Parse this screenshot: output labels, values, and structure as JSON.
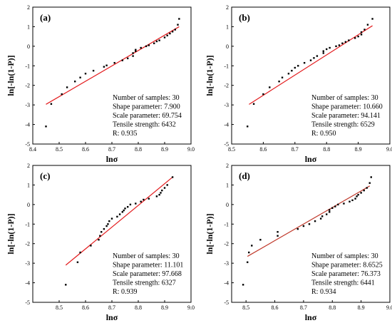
{
  "chart_data": [
    {
      "type": "scatter",
      "panel_label": "(a)",
      "xlabel": "lnσ",
      "ylabel": "ln[-ln(1-P)]",
      "xlim": [
        8.4,
        9.0
      ],
      "ylim": [
        -5,
        2
      ],
      "xticks": [
        "8.4",
        "8.5",
        "8.6",
        "8.7",
        "8.8",
        "8.9",
        "9.0"
      ],
      "yticks": [
        "-5",
        "-4",
        "-3",
        "-2",
        "-1",
        "0",
        "1",
        "2"
      ],
      "fit_line": {
        "x": [
          8.45,
          8.955
        ],
        "y": [
          -2.97,
          1.0
        ],
        "color": "#e31a1c"
      },
      "info": [
        "Number of samples: 30",
        "Shape parameter: 7.900",
        "Scale parameter: 69.754",
        "Tensile strength: 6432",
        "R: 0.935"
      ],
      "points": [
        [
          8.45,
          -4.1
        ],
        [
          8.47,
          -2.95
        ],
        [
          8.51,
          -2.45
        ],
        [
          8.53,
          -2.1
        ],
        [
          8.56,
          -1.8
        ],
        [
          8.58,
          -1.6
        ],
        [
          8.6,
          -1.4
        ],
        [
          8.63,
          -1.25
        ],
        [
          8.67,
          -1.05
        ],
        [
          8.68,
          -0.98
        ],
        [
          8.71,
          -0.85
        ],
        [
          8.74,
          -0.72
        ],
        [
          8.76,
          -0.62
        ],
        [
          8.78,
          -0.5
        ],
        [
          8.78,
          -0.35
        ],
        [
          8.79,
          -0.25
        ],
        [
          8.79,
          -0.18
        ],
        [
          8.81,
          -0.08
        ],
        [
          8.83,
          0.0
        ],
        [
          8.84,
          0.05
        ],
        [
          8.86,
          0.15
        ],
        [
          8.87,
          0.25
        ],
        [
          8.88,
          0.3
        ],
        [
          8.9,
          0.45
        ],
        [
          8.91,
          0.55
        ],
        [
          8.92,
          0.65
        ],
        [
          8.93,
          0.75
        ],
        [
          8.94,
          0.85
        ],
        [
          8.95,
          1.1
        ],
        [
          8.955,
          1.4
        ]
      ]
    },
    {
      "type": "scatter",
      "panel_label": "(b)",
      "xlabel": "lnσ",
      "ylabel": "ln[-ln(1-P)]",
      "xlim": [
        8.5,
        9.0
      ],
      "ylim": [
        -5,
        2
      ],
      "xticks": [
        "8.5",
        "8.6",
        "8.7",
        "8.8",
        "8.9",
        "9.0"
      ],
      "yticks": [
        "-5",
        "-4",
        "-3",
        "-2",
        "-1",
        "0",
        "1",
        "2"
      ],
      "fit_line": {
        "x": [
          8.555,
          8.945
        ],
        "y": [
          -2.97,
          1.05
        ],
        "color": "#e31a1c"
      },
      "info": [
        "Number of samples: 30",
        "Shape parameter: 10.660",
        "Scale parameter: 94.141",
        "Tensile strength: 6529",
        "R: 0.950"
      ],
      "points": [
        [
          8.55,
          -4.1
        ],
        [
          8.57,
          -2.95
        ],
        [
          8.6,
          -2.45
        ],
        [
          8.62,
          -2.1
        ],
        [
          8.65,
          -1.8
        ],
        [
          8.66,
          -1.6
        ],
        [
          8.68,
          -1.4
        ],
        [
          8.69,
          -1.25
        ],
        [
          8.7,
          -1.1
        ],
        [
          8.71,
          -1.0
        ],
        [
          8.73,
          -0.85
        ],
        [
          8.75,
          -0.72
        ],
        [
          8.76,
          -0.6
        ],
        [
          8.77,
          -0.5
        ],
        [
          8.79,
          -0.35
        ],
        [
          8.79,
          -0.25
        ],
        [
          8.8,
          -0.15
        ],
        [
          8.81,
          -0.08
        ],
        [
          8.83,
          0.0
        ],
        [
          8.84,
          0.05
        ],
        [
          8.85,
          0.15
        ],
        [
          8.86,
          0.22
        ],
        [
          8.87,
          0.3
        ],
        [
          8.89,
          0.42
        ],
        [
          8.9,
          0.5
        ],
        [
          8.91,
          0.6
        ],
        [
          8.91,
          0.72
        ],
        [
          8.92,
          0.85
        ],
        [
          8.93,
          1.1
        ],
        [
          8.945,
          1.4
        ]
      ]
    },
    {
      "type": "scatter",
      "panel_label": "(c)",
      "xlabel": "lnσ",
      "ylabel": "ln[-ln(1-P)]",
      "xlim": [
        8.4,
        9.0
      ],
      "ylim": [
        -5,
        2
      ],
      "xticks": [
        "8.5",
        "8.6",
        "8.7",
        "8.8",
        "8.9",
        "9.0"
      ],
      "yticks": [
        "-5",
        "-4",
        "-3",
        "-2",
        "-1",
        "0",
        "1",
        "2"
      ],
      "fit_line": {
        "x": [
          8.525,
          8.93
        ],
        "y": [
          -3.1,
          1.4
        ],
        "color": "#e31a1c"
      },
      "info": [
        "Number of samples: 30",
        "Shape parameter: 11.101",
        "Scale parameter: 97.668",
        "Tensile strength: 6327",
        "R: 0.939"
      ],
      "points": [
        [
          8.525,
          -4.1
        ],
        [
          8.57,
          -2.95
        ],
        [
          8.58,
          -2.45
        ],
        [
          8.62,
          -2.1
        ],
        [
          8.65,
          -1.8
        ],
        [
          8.655,
          -1.6
        ],
        [
          8.66,
          -1.4
        ],
        [
          8.67,
          -1.25
        ],
        [
          8.68,
          -1.1
        ],
        [
          8.685,
          -1.0
        ],
        [
          8.69,
          -0.85
        ],
        [
          8.7,
          -0.72
        ],
        [
          8.72,
          -0.62
        ],
        [
          8.73,
          -0.5
        ],
        [
          8.74,
          -0.38
        ],
        [
          8.745,
          -0.3
        ],
        [
          8.75,
          -0.2
        ],
        [
          8.76,
          -0.12
        ],
        [
          8.77,
          0.0
        ],
        [
          8.79,
          0.05
        ],
        [
          8.81,
          0.15
        ],
        [
          8.82,
          0.25
        ],
        [
          8.84,
          0.3
        ],
        [
          8.87,
          0.42
        ],
        [
          8.88,
          0.5
        ],
        [
          8.885,
          0.6
        ],
        [
          8.89,
          0.72
        ],
        [
          8.9,
          0.85
        ],
        [
          8.91,
          1.0
        ],
        [
          8.93,
          1.4
        ]
      ]
    },
    {
      "type": "scatter",
      "panel_label": "(d)",
      "xlabel": "lnσ",
      "ylabel": "ln[-ln(1-P)]",
      "xlim": [
        8.45,
        9.0
      ],
      "ylim": [
        -5,
        2
      ],
      "xticks": [
        "8.5",
        "8.6",
        "8.7",
        "8.8",
        "8.9",
        "9.0"
      ],
      "yticks": [
        "-5",
        "-4",
        "-3",
        "-2",
        "-1",
        "0",
        "1",
        "2"
      ],
      "fit_line": {
        "x": [
          8.505,
          8.93
        ],
        "y": [
          -2.65,
          0.95
        ],
        "color": "#c0392b"
      },
      "info": [
        "Number of samples: 30",
        "Shape parameter: 8.6525",
        "Scale parameter: 76.373",
        "Tensile strength: 6441",
        "R: 0.934"
      ],
      "points": [
        [
          8.49,
          -4.1
        ],
        [
          8.505,
          -2.95
        ],
        [
          8.51,
          -2.45
        ],
        [
          8.52,
          -2.1
        ],
        [
          8.55,
          -1.8
        ],
        [
          8.61,
          -1.6
        ],
        [
          8.61,
          -1.4
        ],
        [
          8.68,
          -1.25
        ],
        [
          8.7,
          -1.1
        ],
        [
          8.72,
          -1.0
        ],
        [
          8.74,
          -0.85
        ],
        [
          8.76,
          -0.72
        ],
        [
          8.765,
          -0.6
        ],
        [
          8.78,
          -0.5
        ],
        [
          8.79,
          -0.38
        ],
        [
          8.79,
          -0.28
        ],
        [
          8.8,
          -0.18
        ],
        [
          8.81,
          -0.1
        ],
        [
          8.82,
          0.0
        ],
        [
          8.84,
          0.05
        ],
        [
          8.86,
          0.15
        ],
        [
          8.87,
          0.22
        ],
        [
          8.88,
          0.3
        ],
        [
          8.885,
          0.42
        ],
        [
          8.89,
          0.5
        ],
        [
          8.9,
          0.6
        ],
        [
          8.91,
          0.72
        ],
        [
          8.92,
          0.85
        ],
        [
          8.93,
          1.1
        ],
        [
          8.935,
          1.4
        ]
      ]
    }
  ]
}
